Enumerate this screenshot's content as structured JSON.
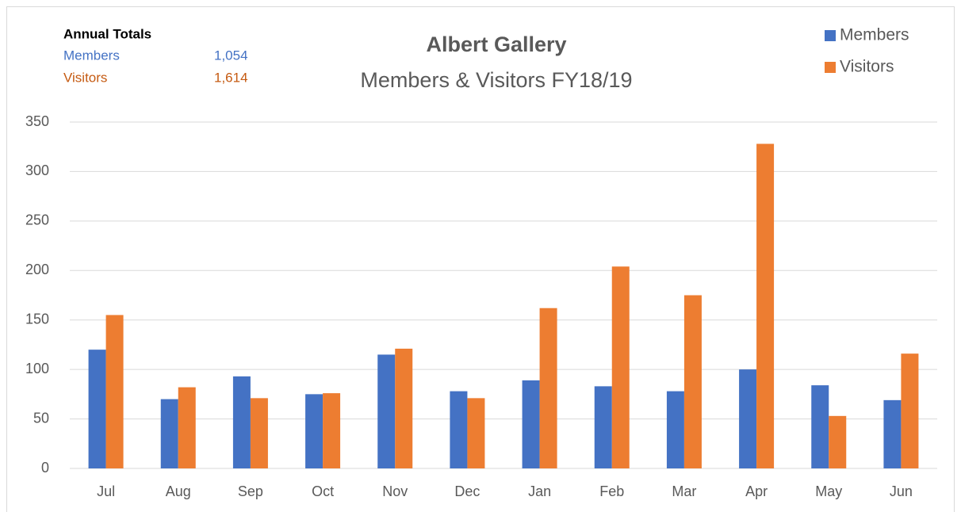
{
  "chart_data": {
    "type": "bar",
    "title": "Albert Gallery",
    "subtitle": "Members & Visitors FY18/19",
    "annual_totals": {
      "title": "Annual Totals",
      "rows": [
        {
          "name": "Members",
          "total": "1,054",
          "color": "#4472c4"
        },
        {
          "name": "Visitors",
          "total": "1,614",
          "color": "#c55a11"
        }
      ]
    },
    "categories": [
      "Jul",
      "Aug",
      "Sep",
      "Oct",
      "Nov",
      "Dec",
      "Jan",
      "Feb",
      "Mar",
      "Apr",
      "May",
      "Jun"
    ],
    "series": [
      {
        "name": "Members",
        "color": "#4472c4",
        "values": [
          120,
          70,
          93,
          75,
          115,
          78,
          89,
          83,
          78,
          100,
          84,
          69
        ]
      },
      {
        "name": "Visitors",
        "color": "#ed7d31",
        "values": [
          155,
          82,
          71,
          76,
          121,
          71,
          162,
          204,
          175,
          328,
          53,
          116
        ]
      }
    ],
    "ylim": [
      0,
      350
    ],
    "yticks": [
      0,
      50,
      100,
      150,
      200,
      250,
      300,
      350
    ],
    "grid": true,
    "legend": "top-right"
  }
}
